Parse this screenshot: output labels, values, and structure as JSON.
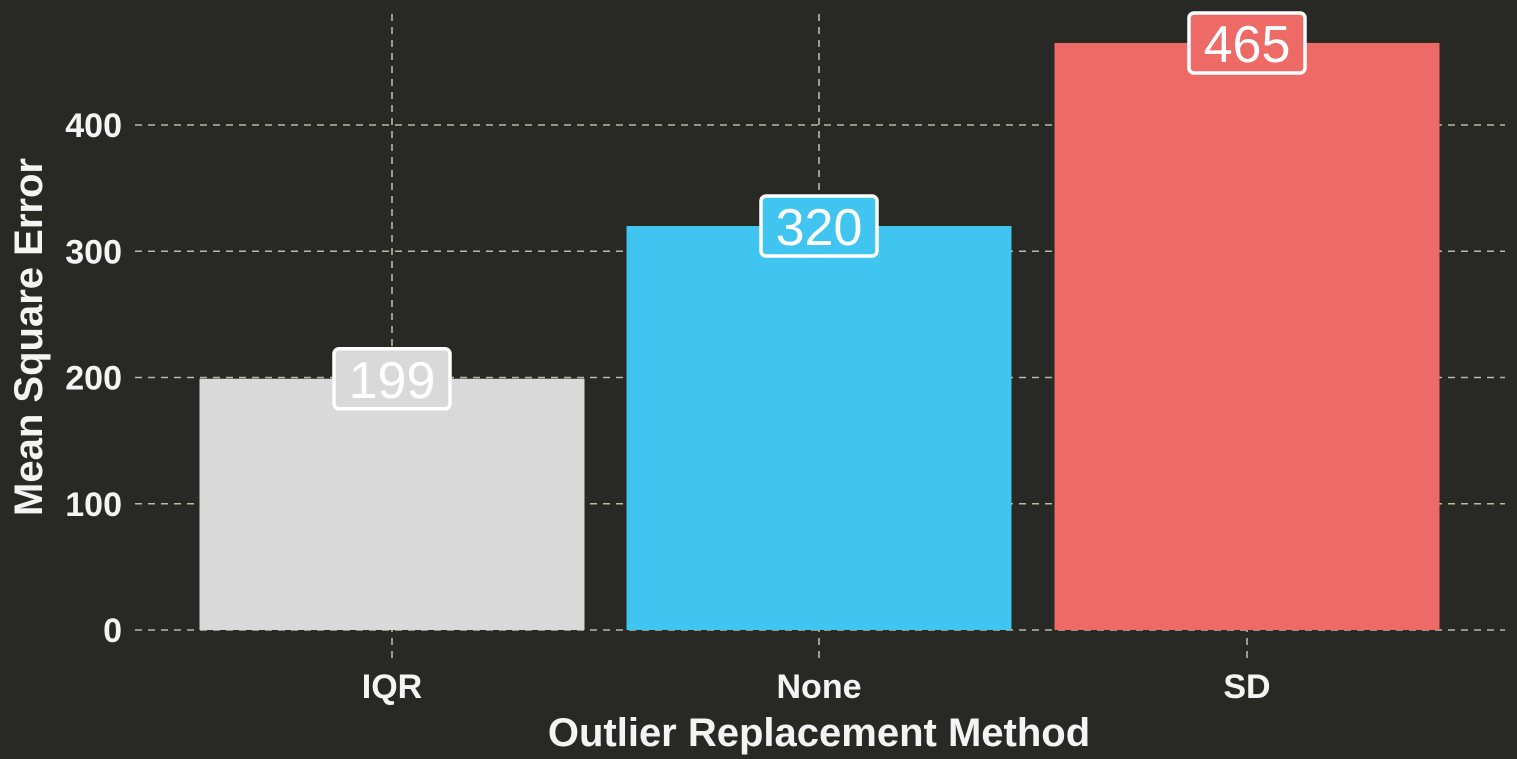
{
  "chart_data": {
    "type": "bar",
    "title": "",
    "xlabel": "Outlier Replacement Method",
    "ylabel": "Mean Square Error",
    "categories": [
      "IQR",
      "None",
      "SD"
    ],
    "values": [
      199,
      320,
      465
    ],
    "data_labels": [
      "199",
      "320",
      "465"
    ],
    "colors": [
      "#d9d9d9",
      "#3fc5f0",
      "#ee6a66"
    ],
    "yticks": [
      0,
      100,
      200,
      300,
      400
    ],
    "ytick_labels": [
      "0",
      "100",
      "200",
      "300",
      "400"
    ],
    "ylim": [
      0,
      490
    ],
    "grid": true,
    "legend": "none",
    "background": "#282825"
  }
}
